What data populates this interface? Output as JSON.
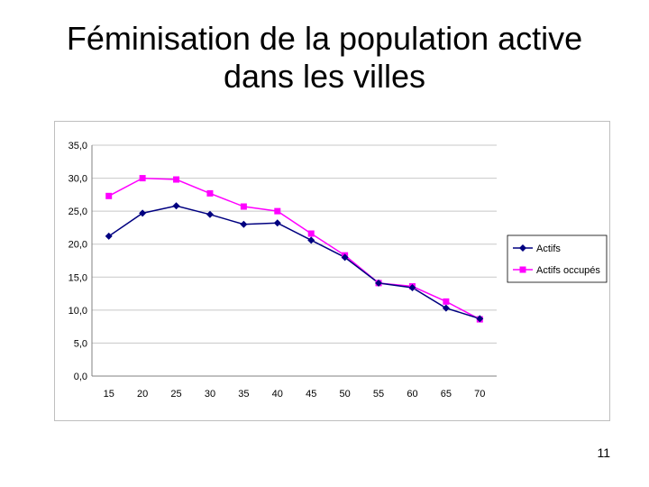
{
  "slide": {
    "title_line1": "Féminisation de la population active",
    "title_line2": "dans les villes",
    "page_number": "11"
  },
  "chart_data": {
    "type": "line",
    "title": "",
    "xlabel": "",
    "ylabel": "",
    "categories": [
      "15",
      "20",
      "25",
      "30",
      "35",
      "40",
      "45",
      "50",
      "55",
      "60",
      "65",
      "70"
    ],
    "ylim": [
      0,
      35
    ],
    "yticks": [
      "0,0",
      "5,0",
      "10,0",
      "15,0",
      "20,0",
      "25,0",
      "30,0",
      "35,0"
    ],
    "grid": true,
    "legend_position": "right",
    "series": [
      {
        "name": "Actifs",
        "color": "#000080",
        "marker": "diamond",
        "values": [
          21.2,
          24.7,
          25.8,
          24.5,
          23.0,
          23.2,
          20.6,
          18.0,
          14.1,
          13.4,
          10.3,
          8.7
        ]
      },
      {
        "name": "Actifs occupés",
        "color": "#ff00ff",
        "marker": "square",
        "values": [
          27.3,
          30.0,
          29.8,
          27.7,
          25.7,
          25.0,
          21.6,
          18.3,
          14.1,
          13.6,
          11.3,
          8.6
        ]
      }
    ]
  }
}
